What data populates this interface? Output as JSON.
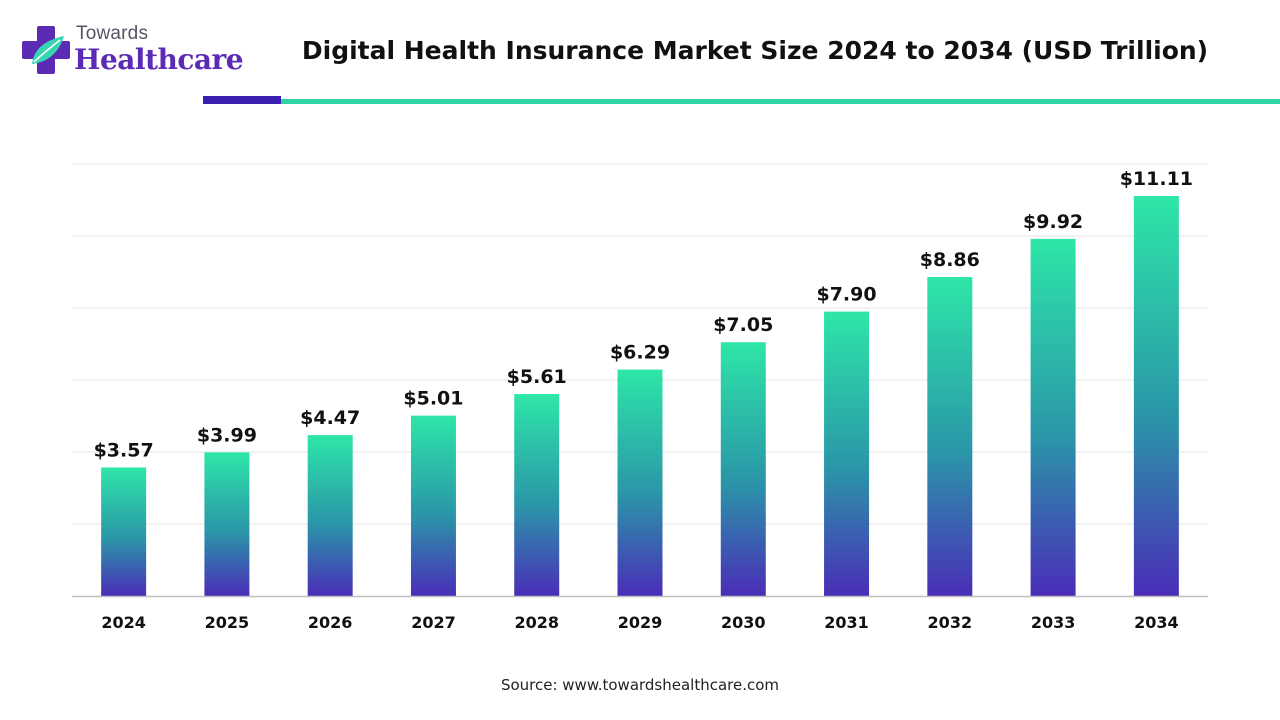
{
  "brand": {
    "top": "Towards",
    "bottom": "Healthcare"
  },
  "colors": {
    "bar_top": "#2ee6a8",
    "bar_mid": "#2a96a8",
    "bar_bottom": "#4a2db8",
    "accent_purple": "#3a1fb0",
    "accent_teal": "#2fd3a6",
    "grid": "#e6e6e6",
    "axis": "#bfbfbf"
  },
  "source": "Source: www.towardshealthcare.com",
  "chart_data": {
    "type": "bar",
    "title": "Digital Health Insurance Market Size 2024 to 2034 (USD Trillion)",
    "xlabel": "",
    "ylabel": "",
    "categories": [
      "2024",
      "2025",
      "2026",
      "2027",
      "2028",
      "2029",
      "2030",
      "2031",
      "2032",
      "2033",
      "2034"
    ],
    "series": [
      {
        "values": [
          3.57,
          3.99,
          4.47,
          5.01,
          5.61,
          6.29,
          7.05,
          7.9,
          8.86,
          9.92,
          11.11
        ]
      }
    ],
    "data_labels": [
      "$3.57",
      "$3.99",
      "$4.47",
      "$5.01",
      "$5.61",
      "$6.29",
      "$7.05",
      "$7.90",
      "$8.86",
      "$9.92",
      "$11.11"
    ],
    "ylim": [
      0,
      12
    ],
    "grid": true,
    "gridlines": [
      2,
      4,
      6,
      8,
      10,
      12
    ],
    "legend": "none"
  }
}
